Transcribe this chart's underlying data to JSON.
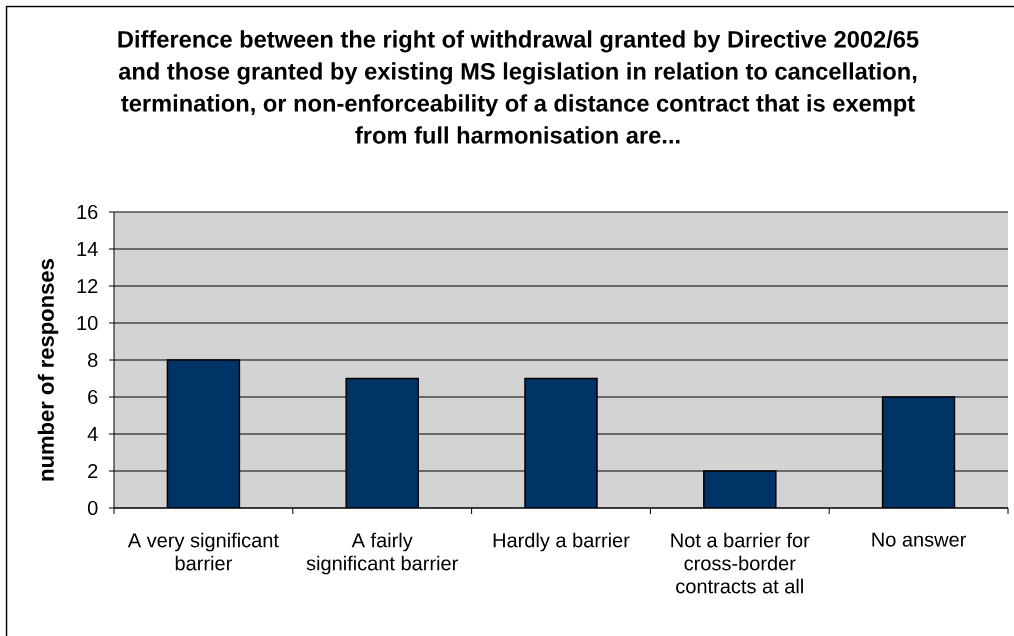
{
  "chart_data": {
    "type": "bar",
    "title": "Difference between the right of withdrawal granted by Directive 2002/65 and those granted by existing MS legislation in relation to cancellation, termination, or non-enforceability of a distance contract that is exempt from full harmonisation are...",
    "ylabel": "number of responses",
    "categories": [
      "A very significant barrier",
      "A fairly significant barrier",
      "Hardly a barrier",
      "Not a barrier for cross-border contracts at all",
      "No answer"
    ],
    "values": [
      8,
      7,
      7,
      2,
      6
    ],
    "color": "#003366",
    "ylim": [
      0,
      16
    ],
    "yticks": [
      0,
      2,
      4,
      6,
      8,
      10,
      12,
      14,
      16
    ],
    "grid": "y"
  }
}
